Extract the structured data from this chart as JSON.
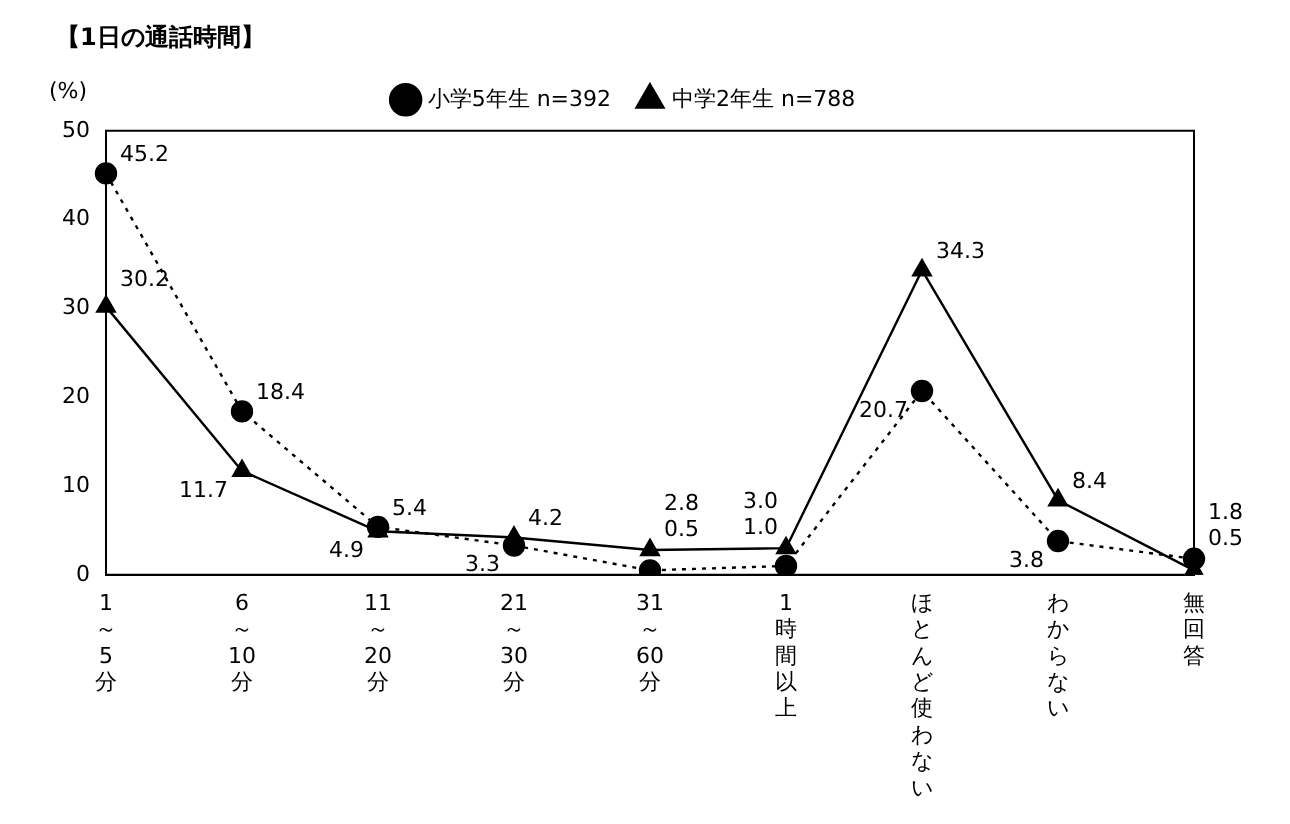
{
  "chart_data": {
    "type": "line",
    "title": "【1日の通話時間】",
    "ylabel": "(%)",
    "categories": [
      "1～5分",
      "6～10分",
      "11～20分",
      "21～30分",
      "31～60分",
      "1時間以上",
      "ほとんど使わない",
      "わからない",
      "無回答"
    ],
    "series": [
      {
        "name": "小学5年生 n=392",
        "color": "#000000",
        "line_style": "dotted",
        "marker": "circle",
        "values": [
          45.2,
          18.4,
          5.4,
          3.3,
          0.5,
          1.0,
          20.7,
          3.8,
          1.8
        ],
        "value_labels": [
          "45.2",
          "18.4",
          "5.4",
          "3.3",
          "0.5",
          "1.0",
          "20.7",
          "3.8",
          "1.8"
        ]
      },
      {
        "name": "中学2年生 n=788",
        "color": "#000000",
        "line_style": "solid",
        "marker": "triangle",
        "values": [
          30.2,
          11.7,
          4.9,
          4.2,
          2.8,
          3.0,
          34.3,
          8.4,
          0.5
        ],
        "value_labels": [
          "30.2",
          "11.7",
          "4.9",
          "4.2",
          "2.8",
          "3.0",
          "34.3",
          "8.4",
          "0.5"
        ]
      }
    ],
    "ylim": [
      0,
      50
    ],
    "yticks": [
      0,
      10,
      20,
      30,
      40,
      50
    ],
    "grid": false,
    "legend": "top"
  }
}
